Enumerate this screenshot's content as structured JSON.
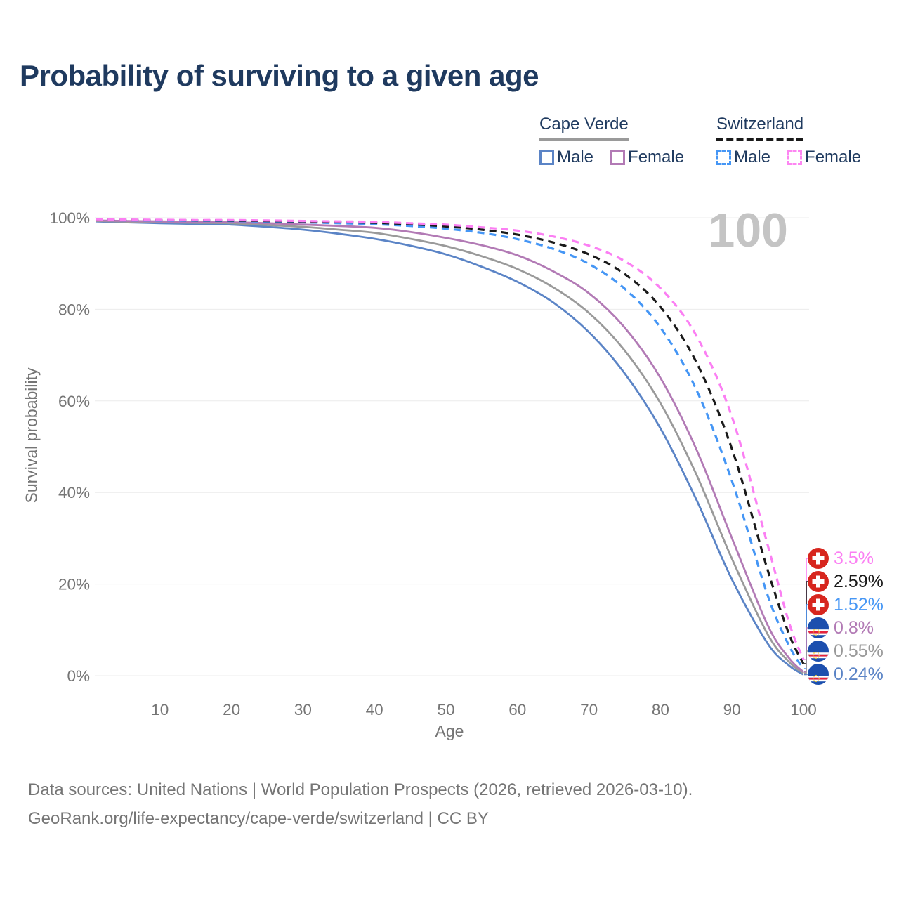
{
  "header": {
    "title": "Probability of surviving to a given age"
  },
  "legend": {
    "groups": [
      {
        "country": "Cape Verde",
        "line_style": "solid",
        "line_color": "#9a9a9a",
        "items": [
          {
            "label": "Male",
            "color": "#5b84c6"
          },
          {
            "label": "Female",
            "color": "#b27ab5"
          }
        ]
      },
      {
        "country": "Switzerland",
        "line_style": "dashed",
        "line_color": "#1a1a1a",
        "items": [
          {
            "label": "Male",
            "color": "#4596f5"
          },
          {
            "label": "Female",
            "color": "#fd86f2"
          }
        ]
      }
    ]
  },
  "axes": {
    "y_title": "Survival probability",
    "x_title": "Age",
    "y_ticks": [
      "0%",
      "20%",
      "40%",
      "60%",
      "80%",
      "100%"
    ],
    "x_ticks": [
      "10",
      "20",
      "30",
      "40",
      "50",
      "60",
      "70",
      "80",
      "90",
      "100"
    ]
  },
  "age_counter": "100",
  "end_labels": [
    {
      "flag": "switzerland",
      "value": "3.5%",
      "color": "#fb7ff3"
    },
    {
      "flag": "switzerland",
      "value": "2.59%",
      "color": "#1a1a1a"
    },
    {
      "flag": "switzerland",
      "value": "1.52%",
      "color": "#4596f5"
    },
    {
      "flag": "cape-verde",
      "value": "0.8%",
      "color": "#b27ab5"
    },
    {
      "flag": "cape-verde",
      "value": "0.55%",
      "color": "#9a9a9a"
    },
    {
      "flag": "cape-verde",
      "value": "0.24%",
      "color": "#5b84c6"
    }
  ],
  "footer": {
    "line1": "Data sources: United Nations | World Population Prospects (2026, retrieved 2026-03-10).",
    "line2": "GeoRank.org/life-expectancy/cape-verde/switzerland | CC BY"
  },
  "chart_data": {
    "type": "line",
    "title": "Probability of surviving to a given age",
    "xlabel": "Age",
    "ylabel": "Survival probability",
    "xlim": [
      1,
      100
    ],
    "ylim": [
      0,
      100
    ],
    "grid": "horizontal",
    "legend_position": "top-right",
    "x": [
      1,
      5,
      10,
      15,
      20,
      25,
      30,
      35,
      40,
      45,
      50,
      55,
      60,
      65,
      70,
      75,
      80,
      85,
      90,
      95,
      98,
      100
    ],
    "series": [
      {
        "name": "Cape Verde — Male",
        "country": "Cape Verde",
        "group": "Male",
        "dash": "solid",
        "color": "#5b84c6",
        "end_label": "0.24%",
        "values": [
          99.2,
          99.0,
          98.8,
          98.65,
          98.5,
          98.0,
          97.4,
          96.5,
          95.4,
          93.9,
          92.0,
          89.3,
          86.0,
          81.5,
          75.0,
          66.0,
          54.0,
          38.5,
          21.0,
          7.0,
          2.2,
          0.24
        ]
      },
      {
        "name": "Cape Verde — Both sexes",
        "country": "Cape Verde",
        "group": "All",
        "dash": "solid",
        "color": "#9a9a9a",
        "end_label": "0.55%",
        "values": [
          99.3,
          99.15,
          99.0,
          98.9,
          98.8,
          98.4,
          98.0,
          97.4,
          96.7,
          95.4,
          93.8,
          91.6,
          88.8,
          84.8,
          79.2,
          71.0,
          59.5,
          44.0,
          25.5,
          9.0,
          3.0,
          0.55
        ]
      },
      {
        "name": "Cape Verde — Female",
        "country": "Cape Verde",
        "group": "Female",
        "dash": "solid",
        "color": "#b27ab5",
        "end_label": "0.8%",
        "values": [
          99.4,
          99.3,
          99.2,
          99.1,
          99.0,
          98.8,
          98.5,
          98.2,
          97.8,
          96.9,
          95.6,
          94.0,
          91.8,
          88.3,
          83.5,
          76.0,
          65.0,
          49.5,
          30.0,
          11.0,
          3.8,
          0.8
        ]
      },
      {
        "name": "Switzerland — Male",
        "country": "Switzerland",
        "group": "Male",
        "dash": "dashed",
        "color": "#4596f5",
        "end_label": "1.52%",
        "values": [
          99.5,
          99.45,
          99.4,
          99.35,
          99.3,
          99.15,
          99.0,
          98.8,
          98.6,
          98.2,
          97.6,
          96.7,
          95.3,
          93.2,
          89.9,
          84.5,
          76.0,
          62.5,
          42.5,
          17.5,
          6.5,
          1.52
        ]
      },
      {
        "name": "Switzerland — Both sexes",
        "country": "Switzerland",
        "group": "All",
        "dash": "dashed",
        "color": "#1a1a1a",
        "end_label": "2.59%",
        "values": [
          99.6,
          99.55,
          99.5,
          99.45,
          99.4,
          99.3,
          99.2,
          99.05,
          98.9,
          98.6,
          98.1,
          97.4,
          96.3,
          94.6,
          92.0,
          87.7,
          80.5,
          68.5,
          49.5,
          23.0,
          9.0,
          2.59
        ]
      },
      {
        "name": "Switzerland — Female",
        "country": "Switzerland",
        "group": "Female",
        "dash": "dashed",
        "color": "#fb7ff3",
        "end_label": "3.5%",
        "values": [
          99.65,
          99.6,
          99.55,
          99.5,
          99.5,
          99.4,
          99.3,
          99.2,
          99.1,
          98.8,
          98.5,
          97.9,
          97.2,
          95.9,
          93.9,
          90.5,
          84.6,
          74.3,
          56.5,
          28.5,
          11.5,
          3.5
        ]
      }
    ]
  }
}
